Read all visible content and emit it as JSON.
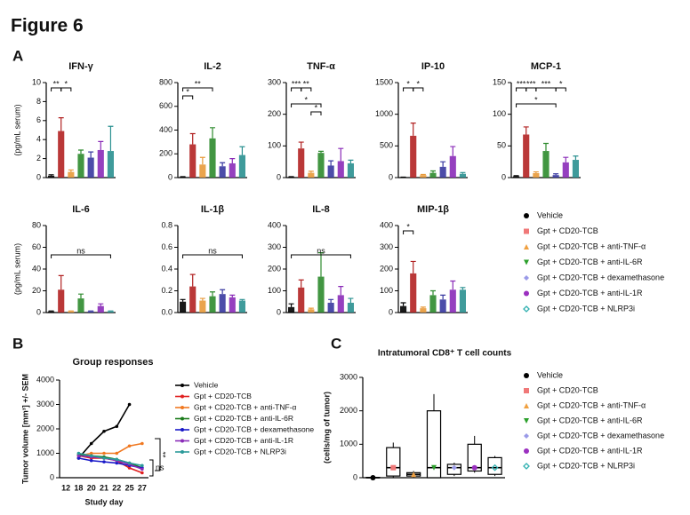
{
  "figure_title": "Figure 6",
  "panel_labels": [
    "A",
    "B",
    "C"
  ],
  "legend_a": {
    "names": [
      "Vehicle",
      "Gpt + CD20-TCB",
      "Gpt + CD20-TCB + anti-TNF-α",
      "Gpt + CD20-TCB + anti-IL-6R",
      "Gpt + CD20-TCB + dexamethasone",
      "Gpt + CD20-TCB + anti-IL-1R",
      "Gpt + CD20-TCB + NLRP3i"
    ],
    "colors": [
      "#000000",
      "#f07878",
      "#f0a040",
      "#2ca02c",
      "#9a9ae8",
      "#9b30c0",
      "#30b0b0"
    ],
    "bar_colors": [
      "#000000",
      "#b22222",
      "#e89a3a",
      "#2e8b2e",
      "#3838a0",
      "#8a2bb8",
      "#2a9090"
    ]
  },
  "chart_data": [
    {
      "type": "bar",
      "title": "IFN-γ",
      "ylabel": "(pg/mL serum)",
      "values": [
        0.2,
        4.9,
        0.6,
        2.5,
        2.1,
        2.9,
        2.8
      ],
      "errors": [
        0.1,
        1.4,
        0.2,
        0.4,
        0.6,
        0.9,
        2.6
      ],
      "ylim": [
        0,
        10
      ],
      "yticks": [
        0,
        2,
        4,
        6,
        8,
        10
      ],
      "annotations": [
        "**",
        "*"
      ]
    },
    {
      "type": "bar",
      "title": "IL-2",
      "values": [
        5,
        280,
        110,
        330,
        95,
        120,
        190
      ],
      "errors": [
        3,
        90,
        60,
        90,
        30,
        40,
        70
      ],
      "ylim": [
        0,
        800
      ],
      "yticks": [
        0,
        200,
        400,
        600,
        800
      ],
      "annotations": [
        "*",
        "**"
      ]
    },
    {
      "type": "bar",
      "title": "TNF-α",
      "values": [
        2,
        92,
        15,
        78,
        38,
        52,
        45
      ],
      "errors": [
        1,
        20,
        5,
        5,
        15,
        40,
        10
      ],
      "ylim": [
        0,
        300
      ],
      "yticks": [
        0,
        100,
        200,
        300
      ],
      "annotations": [
        "***",
        "**",
        "*",
        "*"
      ]
    },
    {
      "type": "bar",
      "title": "IP-10",
      "values": [
        5,
        660,
        40,
        75,
        170,
        340,
        60
      ],
      "errors": [
        3,
        200,
        10,
        30,
        80,
        150,
        20
      ],
      "ylim": [
        0,
        1500
      ],
      "yticks": [
        0,
        500,
        1000,
        1500
      ],
      "annotations": [
        "*",
        "*"
      ]
    },
    {
      "type": "bar",
      "title": "MCP-1",
      "values": [
        2,
        68,
        7,
        42,
        4,
        24,
        28
      ],
      "errors": [
        1,
        12,
        2,
        12,
        2,
        8,
        6
      ],
      "ylim": [
        0,
        150
      ],
      "yticks": [
        0,
        50,
        100,
        150
      ],
      "annotations": [
        "***",
        "***",
        "***",
        "*",
        "*"
      ]
    },
    {
      "type": "bar",
      "title": "IL-6",
      "ylabel": "(pg/mL serum)",
      "values": [
        1,
        21,
        1,
        13,
        1,
        6,
        1
      ],
      "errors": [
        0.5,
        13,
        0.5,
        4,
        0.5,
        2,
        0.5
      ],
      "ylim": [
        0,
        80
      ],
      "yticks": [
        0,
        20,
        40,
        60,
        80
      ],
      "annotations": [
        "ns"
      ]
    },
    {
      "type": "bar",
      "title": "IL-1β",
      "values": [
        0.1,
        0.24,
        0.11,
        0.15,
        0.17,
        0.14,
        0.11
      ],
      "errors": [
        0.02,
        0.11,
        0.02,
        0.04,
        0.04,
        0.02,
        0.01
      ],
      "ylim": [
        0,
        0.8
      ],
      "yticks": [
        {
          "value": 0,
          "label": "0.0"
        },
        0.2,
        0.4,
        0.6,
        0.8
      ],
      "annotations": [
        "ns"
      ]
    },
    {
      "type": "bar",
      "title": "IL-8",
      "values": [
        25,
        115,
        15,
        165,
        45,
        80,
        45
      ],
      "errors": [
        15,
        35,
        5,
        110,
        15,
        40,
        20
      ],
      "ylim": [
        0,
        400
      ],
      "yticks": [
        0,
        100,
        200,
        300,
        400
      ],
      "annotations": [
        "ns"
      ]
    },
    {
      "type": "bar",
      "title": "MIP-1β",
      "values": [
        30,
        180,
        20,
        80,
        60,
        105,
        105
      ],
      "errors": [
        15,
        55,
        5,
        20,
        20,
        40,
        10
      ],
      "ylim": [
        0,
        400
      ],
      "yticks": [
        0,
        100,
        200,
        300,
        400
      ],
      "annotations": [
        "*"
      ]
    },
    {
      "type": "line",
      "title": "Group responses",
      "ylabel": "Tumor volume [mm³] +/- SEM",
      "xlabel": "Study day",
      "categories": [
        "12",
        "18",
        "20",
        "21",
        "22",
        "25",
        "27"
      ],
      "ylim": [
        0,
        4000
      ],
      "yticks": [
        0,
        1000,
        2000,
        3000,
        4000
      ],
      "annotations": [
        "**",
        "ns"
      ],
      "series": [
        {
          "name": "Vehicle",
          "color": "#000000",
          "values": [
            null,
            800,
            1400,
            1900,
            2100,
            3000,
            null
          ]
        },
        {
          "name": "Gpt + CD20-TCB",
          "color": "#e02020",
          "values": [
            null,
            900,
            800,
            800,
            700,
            400,
            200
          ]
        },
        {
          "name": "Gpt + CD20-TCB + anti-TNF-α",
          "color": "#f07820",
          "values": [
            null,
            900,
            1000,
            1000,
            1000,
            1300,
            1400
          ]
        },
        {
          "name": "Gpt + CD20-TCB + anti-IL-6R",
          "color": "#1a7a1a",
          "values": [
            null,
            950,
            900,
            850,
            750,
            600,
            400
          ]
        },
        {
          "name": "Gpt + CD20-TCB + dexamethasone",
          "color": "#1818c8",
          "values": [
            null,
            800,
            700,
            650,
            600,
            500,
            400
          ]
        },
        {
          "name": "Gpt + CD20-TCB + anti-IL-1R",
          "color": "#8a2bb8",
          "values": [
            null,
            900,
            850,
            800,
            700,
            550,
            350
          ]
        },
        {
          "name": "Gpt + CD20-TCB + NLRP3i",
          "color": "#2a9a9a",
          "values": [
            null,
            1000,
            900,
            800,
            750,
            600,
            500
          ]
        }
      ]
    },
    {
      "type": "box",
      "title": "Intratumoral  CD8⁺ T cell counts",
      "ylabel": "(cells/mg of tumor)",
      "ylim": [
        0,
        3000
      ],
      "yticks": [
        0,
        1000,
        2000,
        3000
      ],
      "series": [
        {
          "name": "Vehicle",
          "color": "#000000",
          "min": 0,
          "q1": 0,
          "median": 0,
          "q3": 10,
          "max": 20
        },
        {
          "name": "Gpt + CD20-TCB",
          "color": "#f07878",
          "min": 0,
          "q1": 50,
          "median": 300,
          "q3": 900,
          "max": 1050
        },
        {
          "name": "Gpt + CD20-TCB + anti-TNF-α",
          "color": "#f0a040",
          "min": 0,
          "q1": 50,
          "median": 100,
          "q3": 150,
          "max": 200
        },
        {
          "name": "Gpt + CD20-TCB + anti-IL-6R",
          "color": "#2ca02c",
          "min": 0,
          "q1": 0,
          "median": 300,
          "q3": 2000,
          "max": 2500
        },
        {
          "name": "Gpt + CD20-TCB + dexamethasone",
          "color": "#9a9ae8",
          "min": 50,
          "q1": 100,
          "median": 300,
          "q3": 400,
          "max": 450
        },
        {
          "name": "Gpt + CD20-TCB + anti-IL-1R",
          "color": "#9b30c0",
          "min": 150,
          "q1": 200,
          "median": 300,
          "q3": 1000,
          "max": 1250
        },
        {
          "name": "Gpt + CD20-TCB + NLRP3i",
          "color": "#30b0b0",
          "min": 50,
          "q1": 100,
          "median": 300,
          "q3": 600,
          "max": 650
        }
      ]
    }
  ]
}
